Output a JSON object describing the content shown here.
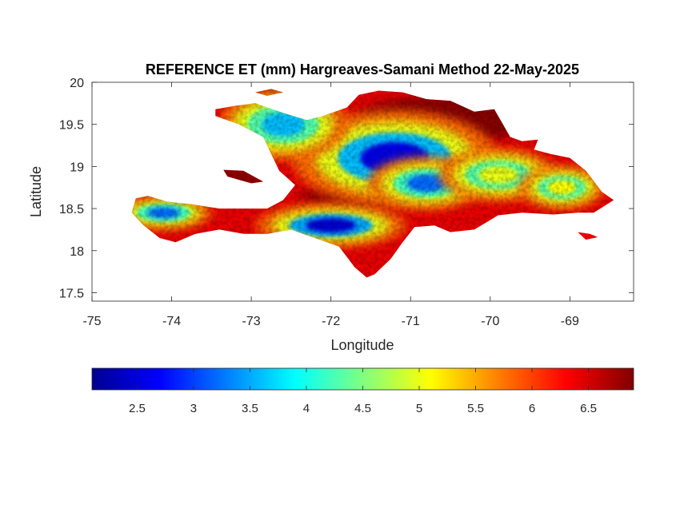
{
  "chart_data": {
    "type": "heatmap",
    "title": "REFERENCE ET (mm) Hargreaves-Samani Method  22-May-2025",
    "xlabel": "Longitude",
    "ylabel": "Latitude",
    "xlim": [
      -75,
      -68.2
    ],
    "ylim": [
      17.4,
      20
    ],
    "x_ticks": [
      -75,
      -74,
      -73,
      -72,
      -71,
      -70,
      -69
    ],
    "y_ticks": [
      20,
      19.5,
      19,
      18.5,
      18,
      17.5
    ],
    "colorbar": {
      "colormap": "jet",
      "range": [
        2.1,
        6.9
      ],
      "ticks": [
        2.5,
        3,
        3.5,
        4,
        4.5,
        5,
        5.5,
        6,
        6.5
      ],
      "placement": "bottom"
    },
    "grid": false,
    "regions": [
      {
        "name": "Hispaniola",
        "approx_value_range": [
          2.3,
          6.9
        ]
      },
      {
        "name": "Tortuga",
        "approx_value_range": [
          6.0,
          6.8
        ]
      },
      {
        "name": "Gonave",
        "approx_value_range": [
          6.0,
          6.8
        ]
      }
    ],
    "low_value_zones": [
      {
        "lon": -71.2,
        "lat": 19.1,
        "value": 2.6
      },
      {
        "lon": -72.0,
        "lat": 18.3,
        "value": 2.5
      },
      {
        "lon": -74.1,
        "lat": 18.45,
        "value": 3.2
      },
      {
        "lon": -72.6,
        "lat": 19.5,
        "value": 3.6
      },
      {
        "lon": -70.8,
        "lat": 18.8,
        "value": 3.2
      },
      {
        "lon": -69.9,
        "lat": 18.9,
        "value": 5.0
      },
      {
        "lon": -69.1,
        "lat": 18.75,
        "value": 5.1
      }
    ]
  }
}
